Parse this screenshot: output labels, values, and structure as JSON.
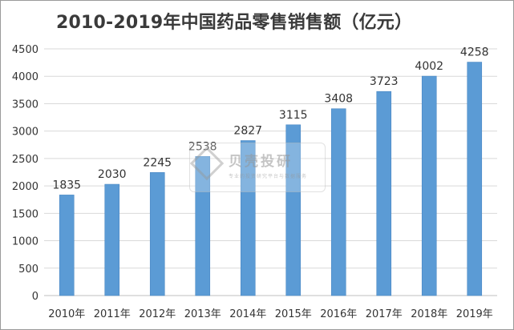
{
  "title": "2010-2019年中国药品零售销售额（亿元）",
  "watermark": {
    "name": "贝壳投研",
    "tagline": "专业的投资研究平台与数据服务"
  },
  "colors": {
    "bar": "#5b9bd5",
    "bar_edge": "#4a88c4",
    "grid": "#d9d9d9",
    "text": "#333333"
  },
  "chart_data": {
    "type": "bar",
    "title": "2010-2019年中国药品零售销售额（亿元）",
    "categories": [
      "2010年",
      "2011年",
      "2012年",
      "2013年",
      "2014年",
      "2015年",
      "2016年",
      "2017年",
      "2018年",
      "2019年"
    ],
    "values": [
      1835,
      2030,
      2245,
      2538,
      2827,
      3115,
      3408,
      3723,
      4002,
      4258
    ],
    "data_labels": [
      "1835",
      "2030",
      "2245",
      "2538",
      "2827",
      "3115",
      "3408",
      "3723",
      "4002",
      "4258"
    ],
    "yticks": [
      "0",
      "500",
      "1000",
      "1500",
      "2000",
      "2500",
      "3000",
      "3500",
      "4000",
      "4500"
    ],
    "ylim": [
      0,
      4500
    ],
    "grid": true,
    "legend": "none",
    "xlabel": "",
    "ylabel": ""
  }
}
